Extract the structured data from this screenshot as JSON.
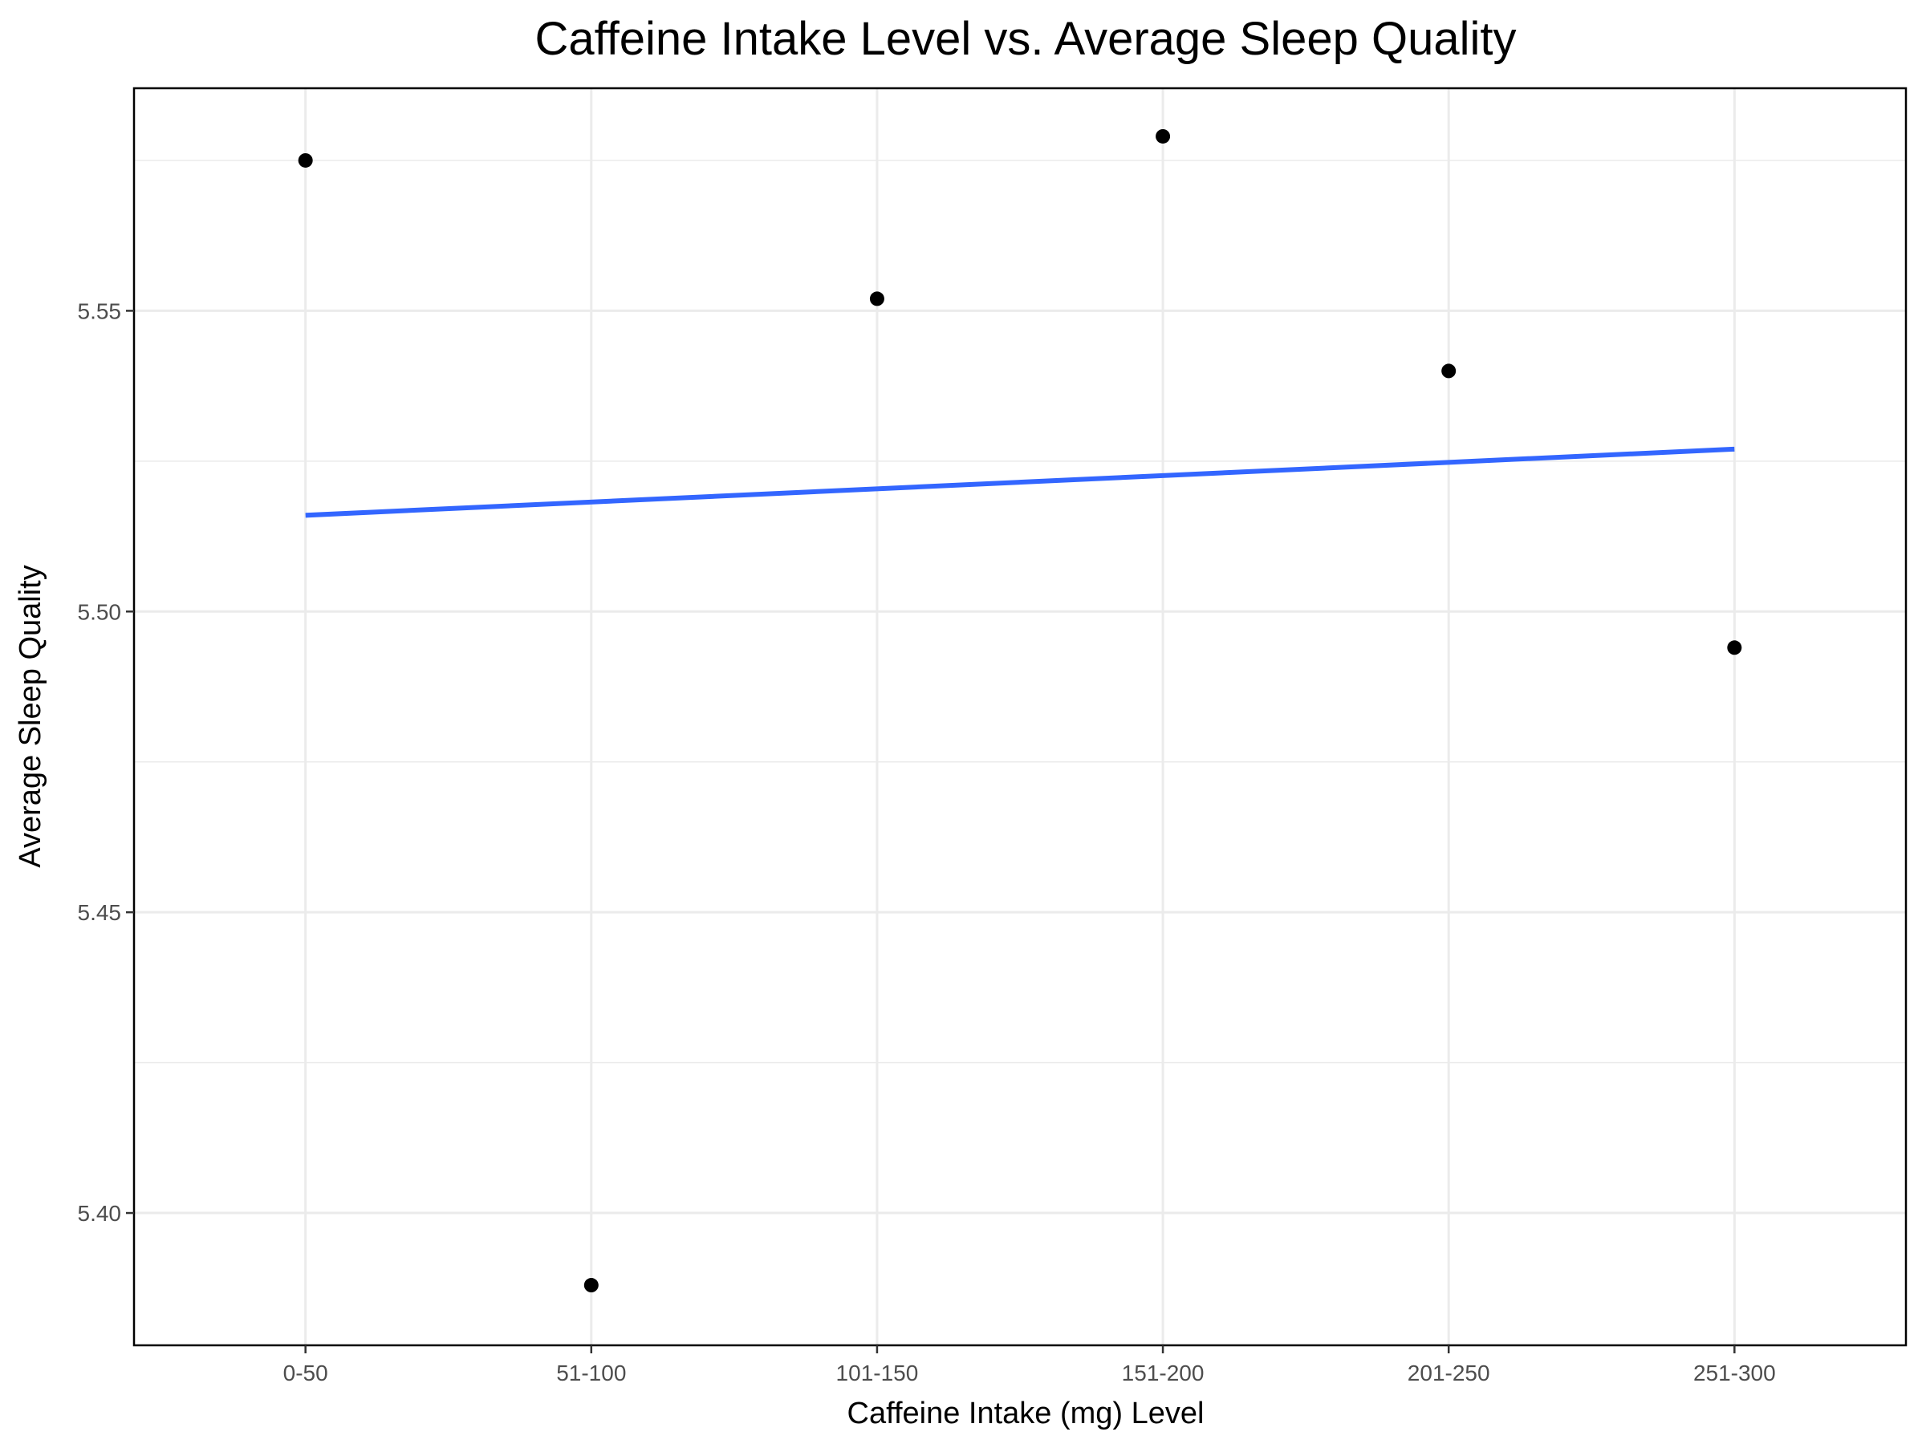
{
  "chart_data": {
    "type": "scatter",
    "title": "Caffeine Intake Level vs. Average Sleep Quality",
    "xlabel": "Caffeine Intake (mg) Level",
    "ylabel": "Average Sleep Quality",
    "categories": [
      "0-50",
      "51-100",
      "101-150",
      "151-200",
      "201-250",
      "251-300"
    ],
    "values": [
      5.575,
      5.388,
      5.552,
      5.579,
      5.54,
      5.494
    ],
    "trend_line": {
      "start": 5.516,
      "end": 5.527,
      "color": "#3366ff"
    },
    "ylim": [
      5.378,
      5.587
    ],
    "y_ticks": [
      5.4,
      5.45,
      5.5,
      5.55
    ],
    "y_tick_labels": [
      "5.40",
      "5.45",
      "5.50",
      "5.55"
    ],
    "y_minor_ticks": [
      5.425,
      5.475,
      5.525,
      5.575
    ],
    "point_color": "#000000",
    "grid": true,
    "legend": "none"
  }
}
